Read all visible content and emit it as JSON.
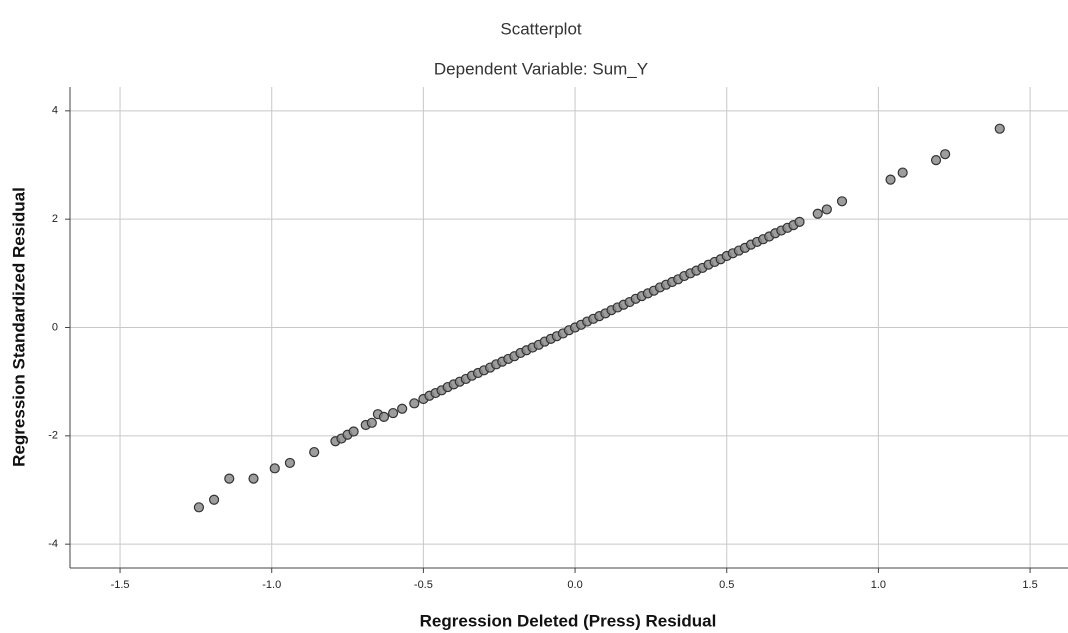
{
  "chart_data": {
    "type": "scatter",
    "title": "Scatterplot",
    "subtitle": "Dependent Variable: Sum_Y",
    "x_label": "Regression Deleted (Press) Residual",
    "y_label": "Regression Standardized Residual",
    "color": "#8c8c8c",
    "edge_color": "#333333",
    "grid": true,
    "xlim": [
      -1.665,
      1.625
    ],
    "ylim": [
      -4.44,
      4.44
    ],
    "xticks": [
      -1.5,
      {
        "value": -1.0,
        "label": "-1.0"
      },
      -0.5,
      {
        "value": 0,
        "label": "0.0"
      },
      0.5,
      {
        "value": 1.0,
        "label": "1.0"
      },
      1.5
    ],
    "yticks": [
      4,
      2,
      0,
      -2,
      -4
    ],
    "x": [
      -1.24,
      -1.19,
      -1.14,
      -1.06,
      -0.99,
      -0.94,
      -0.86,
      -0.79,
      -0.77,
      -0.75,
      -0.73,
      -0.69,
      -0.67,
      -0.65,
      -0.63,
      -0.6,
      -0.57,
      -0.53,
      -0.5,
      -0.48,
      -0.46,
      -0.44,
      -0.42,
      -0.4,
      -0.38,
      -0.36,
      -0.34,
      -0.32,
      -0.3,
      -0.28,
      -0.26,
      -0.24,
      -0.22,
      -0.2,
      -0.18,
      -0.16,
      -0.14,
      -0.12,
      -0.1,
      -0.08,
      -0.06,
      -0.04,
      -0.02,
      0,
      0.02,
      0.04,
      0.06,
      0.08,
      0.1,
      0.12,
      0.14,
      0.16,
      0.18,
      0.2,
      0.22,
      0.24,
      0.26,
      0.28,
      0.3,
      0.32,
      0.34,
      0.36,
      0.38,
      0.4,
      0.42,
      0.44,
      0.46,
      0.48,
      0.5,
      0.52,
      0.54,
      0.56,
      0.58,
      0.6,
      0.62,
      0.64,
      0.66,
      0.68,
      0.7,
      0.72,
      0.74,
      0.8,
      0.83,
      0.88,
      1.04,
      1.08,
      1.19,
      1.22,
      1.4
    ],
    "values": [
      -3.32,
      -3.18,
      -2.79,
      -2.79,
      -2.6,
      -2.5,
      -2.3,
      -2.1,
      -2.05,
      -1.98,
      -1.92,
      -1.8,
      -1.76,
      -1.6,
      -1.65,
      -1.58,
      -1.5,
      -1.4,
      -1.32,
      -1.26,
      -1.21,
      -1.16,
      -1.1,
      -1.05,
      -1.0,
      -0.95,
      -0.89,
      -0.84,
      -0.79,
      -0.74,
      -0.68,
      -0.63,
      -0.58,
      -0.53,
      -0.47,
      -0.42,
      -0.37,
      -0.32,
      -0.26,
      -0.21,
      -0.16,
      -0.11,
      -0.05,
      0,
      0.05,
      0.11,
      0.16,
      0.21,
      0.26,
      0.32,
      0.37,
      0.42,
      0.47,
      0.53,
      0.58,
      0.63,
      0.68,
      0.74,
      0.79,
      0.84,
      0.89,
      0.95,
      1.0,
      1.05,
      1.1,
      1.16,
      1.21,
      1.26,
      1.32,
      1.37,
      1.42,
      1.47,
      1.53,
      1.58,
      1.63,
      1.68,
      1.74,
      1.79,
      1.84,
      1.89,
      1.95,
      2.1,
      2.18,
      2.33,
      2.73,
      2.86,
      3.09,
      3.2,
      3.67
    ]
  }
}
